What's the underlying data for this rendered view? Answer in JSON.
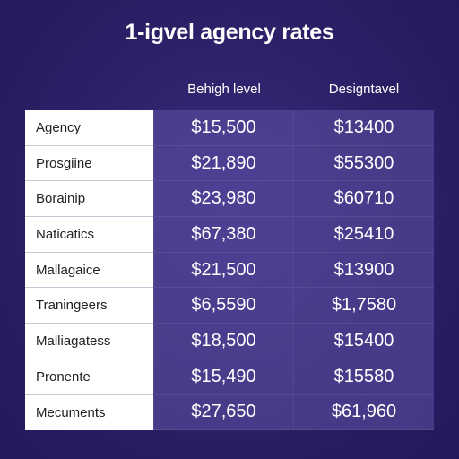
{
  "chart_data": {
    "type": "table",
    "title": "1-igvel agency rates",
    "columns": [
      "Behigh level",
      "Designtavel"
    ],
    "rows": [
      {
        "label": "Agency",
        "values": [
          "$15,500",
          "$13400"
        ]
      },
      {
        "label": "Prosgiine",
        "values": [
          "$21,890",
          "$55300"
        ]
      },
      {
        "label": "Borainip",
        "values": [
          "$23,980",
          "$60710"
        ]
      },
      {
        "label": "Naticatics",
        "values": [
          "$67,380",
          "$25410"
        ]
      },
      {
        "label": "Mallagaice",
        "values": [
          "$21,500",
          "$13900"
        ]
      },
      {
        "label": "Traningeers",
        "values": [
          "$6,5590",
          "$1,7580"
        ]
      },
      {
        "label": "Malliagatess",
        "values": [
          "$18,500",
          "$15400"
        ]
      },
      {
        "label": "Pronente",
        "values": [
          "$15,490",
          "$15580"
        ]
      },
      {
        "label": "Mecuments",
        "values": [
          "$27,650",
          "$61,960"
        ]
      }
    ]
  },
  "colors": {
    "background": "#2c1f66",
    "label_cell": "#ffffff",
    "value_cell": "#5a4aa0",
    "text_light": "#ffffff",
    "text_dark": "#222222"
  }
}
